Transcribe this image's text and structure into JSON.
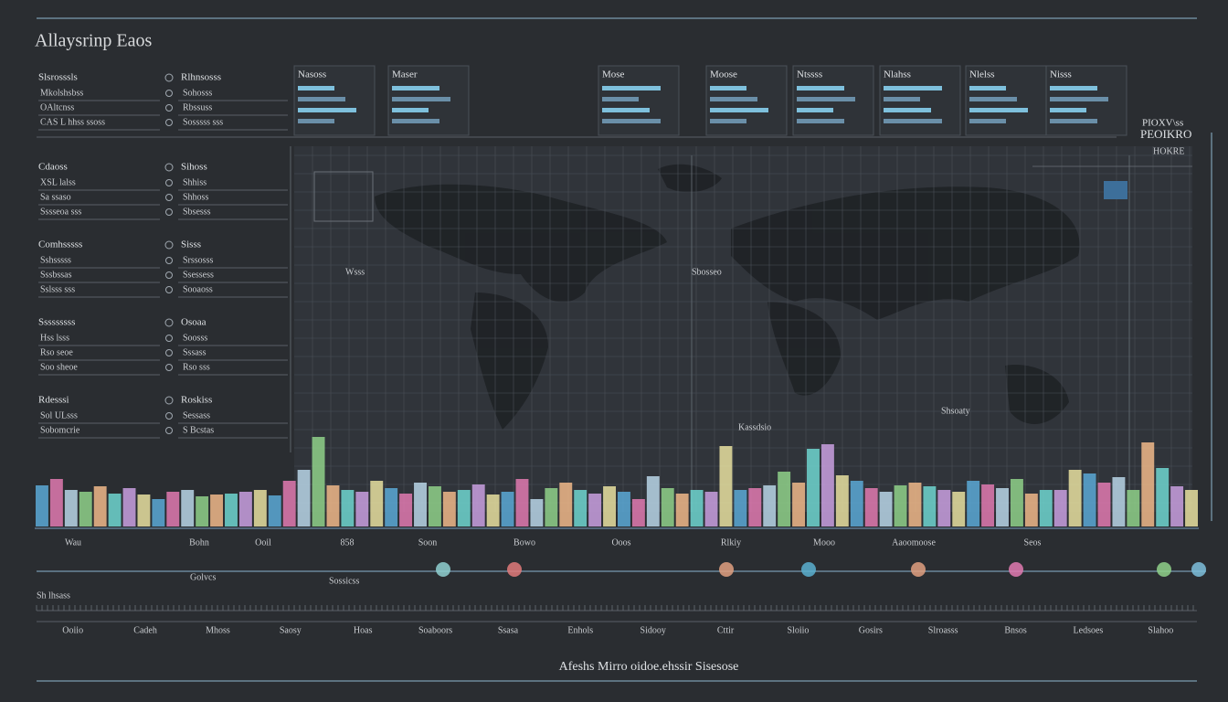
{
  "header": {
    "title": "Allaysrinp Eaos"
  },
  "left_panel": [
    {
      "title": "Slsrosssls",
      "rows": [
        "Mkolshsbss",
        "OAltcnss",
        "CAS L hhss ssoss"
      ],
      "side_title": "Rlhnsosss",
      "side_rows": [
        "Sohosss",
        "Rbssuss",
        "Sosssss sss"
      ]
    },
    {
      "title": "Cdaoss",
      "rows": [
        "XSL lalss",
        "Sa ssaso",
        "Sssseoa sss"
      ],
      "side_title": "Sihoss",
      "side_rows": [
        "Shhiss",
        "Shhoss",
        "Sbsesss"
      ]
    },
    {
      "title": "Comhsssss",
      "rows": [
        "Sshsssss",
        "Sssbssas",
        "Sslsss sss"
      ],
      "side_title": "Sisss",
      "side_rows": [
        "Srssosss",
        "Ssessess",
        "Sooaoss"
      ]
    },
    {
      "title": "Sssssssss",
      "rows": [
        "Hss lsss",
        "Rso seoe",
        "Soo sheoe"
      ],
      "side_title": "Osoaa",
      "side_rows": [
        "Soosss",
        "Sssass",
        "Rso sss"
      ]
    },
    {
      "title": "Rdesssi",
      "rows": [
        "Sol ULsss",
        "Sobomcrie"
      ],
      "side_title": "Roskiss",
      "side_rows": [
        "Sessass",
        "S Bcstas"
      ]
    }
  ],
  "cards": [
    "Nasoss",
    "Maser",
    "Mose",
    "Moose",
    "Ntssss",
    "Nlahss",
    "Nlelss",
    "Nisss"
  ],
  "corner": {
    "title": "PIOXV\\ss",
    "subtitle": "PEOIKRO",
    "note": "HOKRE"
  },
  "map_labels": [
    "Wsss",
    "Sbosseo",
    "Kassdsio",
    "Shsoaty"
  ],
  "bars": {
    "values": [
      45,
      52,
      40,
      38,
      44,
      36,
      42,
      35,
      30,
      38,
      40,
      33,
      35,
      36,
      38,
      40,
      34,
      50,
      62,
      98,
      45,
      40,
      38,
      50,
      42,
      36,
      48,
      44,
      38,
      40,
      46,
      35,
      38,
      52,
      30,
      42,
      48,
      40,
      36,
      44,
      38,
      30,
      55,
      42,
      36,
      40,
      38,
      88,
      40,
      42,
      45,
      60,
      48,
      85,
      90,
      56,
      50,
      42,
      38,
      45,
      48,
      44,
      40,
      38,
      50,
      46,
      42,
      52,
      36,
      40,
      40,
      62,
      58,
      48,
      54,
      40,
      92,
      64,
      44,
      40
    ],
    "colors": [
      "#5aa9d6",
      "#e07ab0",
      "#b8d6e8",
      "#8fd18a",
      "#f0b88a",
      "#6fd6d0",
      "#c9a0e0",
      "#e8e0a0"
    ]
  },
  "axis_labels": [
    "Wau",
    "Bohn",
    "Ooil",
    "858",
    "Soon",
    "Bowo",
    "Ooos",
    "Rlkiy",
    "Mooo",
    "Aaoomoose",
    "Seos"
  ],
  "timeline_labels": [
    "Golvcs",
    "Sossicss",
    "Sh lhsass"
  ],
  "bottom_labels": [
    "Ooiio",
    "Cadeh",
    "Mhoss",
    "Saosy",
    "Hoas",
    "Soaboors",
    "Ssasa",
    "Enhols",
    "Sidooy",
    "Cttir",
    "Sloiio",
    "Gosirs",
    "Slroasss",
    "Bnsos",
    "Ledsoes",
    "Slahoo"
  ],
  "footer": {
    "text": "Afeshs Mirro oidoe.ehssir Sisesose"
  }
}
